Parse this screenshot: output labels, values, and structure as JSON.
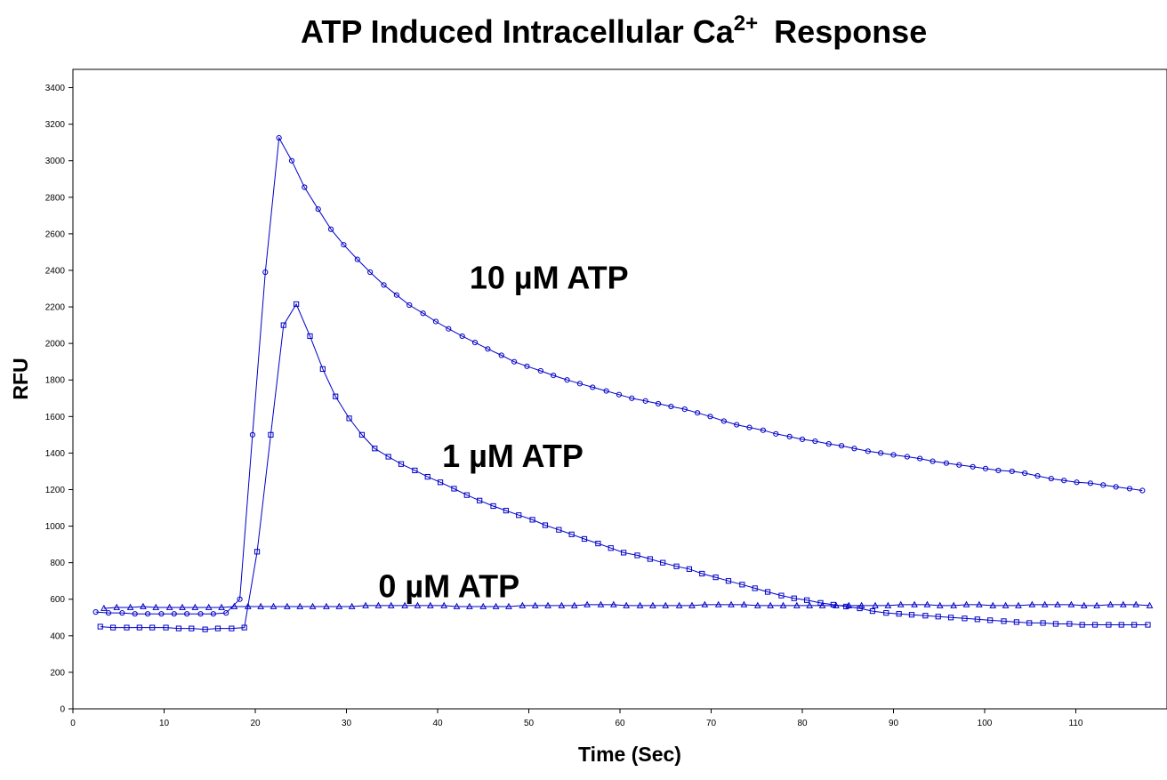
{
  "chart_data": {
    "type": "line",
    "title": "ATP Induced Intracellular Ca",
    "title_superscript": "2+",
    "title_suffix": "Response",
    "xlabel": "Time (Sec)",
    "ylabel": "RFU",
    "xlim": [
      0,
      120
    ],
    "ylim": [
      0,
      3500
    ],
    "xticks": [
      0,
      10,
      20,
      30,
      40,
      50,
      60,
      70,
      80,
      90,
      100,
      110
    ],
    "yticks": [
      0,
      200,
      400,
      600,
      800,
      1000,
      1200,
      1400,
      1600,
      1800,
      2000,
      2200,
      2400,
      2600,
      2800,
      3000,
      3200,
      3400
    ],
    "grid": false,
    "line_color": "#0000c8",
    "annotations": [
      {
        "text": "10 µM ATP",
        "x": 43.5,
        "y": 2300
      },
      {
        "text": "1 µM ATP",
        "x": 40.5,
        "y": 1325
      },
      {
        "text": "0 µM ATP",
        "x": 33.5,
        "y": 610
      }
    ],
    "series": [
      {
        "marker": "circle",
        "x": [
          2.5,
          3.9,
          5.4,
          6.8,
          8.2,
          9.7,
          11.1,
          12.5,
          14.0,
          15.4,
          16.8,
          18.3,
          19.7,
          21.1,
          22.6,
          24.0,
          25.4,
          26.9,
          28.3,
          29.7,
          31.2,
          32.6,
          34.1,
          35.5,
          36.9,
          38.4,
          39.8,
          41.2,
          42.7,
          44.1,
          45.5,
          47.0,
          48.4,
          49.8,
          51.3,
          52.7,
          54.2,
          55.6,
          57.0,
          58.5,
          59.9,
          61.3,
          62.8,
          64.2,
          65.6,
          67.1,
          68.5,
          69.9,
          71.4,
          72.8,
          74.2,
          75.7,
          77.1,
          78.6,
          80.0,
          81.4,
          82.9,
          84.3,
          85.7,
          87.2,
          88.6,
          90.0,
          91.5,
          92.9,
          94.3,
          95.8,
          97.2,
          98.7,
          100.1,
          101.5,
          103.0,
          104.4,
          105.8,
          107.3,
          108.7,
          110.1,
          111.6,
          113.0,
          114.4,
          115.9,
          117.3
        ],
        "values": [
          530,
          525,
          525,
          520,
          520,
          520,
          520,
          520,
          520,
          520,
          525,
          600,
          1500,
          2390,
          3125,
          3000,
          2855,
          2735,
          2625,
          2540,
          2460,
          2390,
          2320,
          2265,
          2210,
          2165,
          2120,
          2080,
          2040,
          2005,
          1970,
          1935,
          1900,
          1875,
          1850,
          1825,
          1800,
          1780,
          1760,
          1740,
          1720,
          1700,
          1685,
          1670,
          1655,
          1640,
          1620,
          1600,
          1575,
          1555,
          1540,
          1525,
          1505,
          1490,
          1475,
          1465,
          1450,
          1440,
          1425,
          1410,
          1400,
          1390,
          1380,
          1370,
          1355,
          1345,
          1335,
          1325,
          1315,
          1305,
          1300,
          1290,
          1275,
          1260,
          1250,
          1240,
          1235,
          1225,
          1215,
          1205,
          1195
        ]
      },
      {
        "marker": "square",
        "x": [
          3.0,
          4.4,
          5.9,
          7.3,
          8.7,
          10.2,
          11.6,
          13.0,
          14.5,
          15.9,
          17.4,
          18.8,
          20.2,
          21.7,
          23.1,
          24.5,
          26.0,
          27.4,
          28.8,
          30.3,
          31.7,
          33.1,
          34.6,
          36.0,
          37.5,
          38.9,
          40.3,
          41.8,
          43.2,
          44.6,
          46.1,
          47.5,
          48.9,
          50.4,
          51.8,
          53.3,
          54.7,
          56.1,
          57.6,
          59.0,
          60.4,
          61.9,
          63.3,
          64.7,
          66.2,
          67.6,
          69.0,
          70.5,
          71.9,
          73.4,
          74.8,
          76.2,
          77.7,
          79.1,
          80.5,
          82.0,
          83.4,
          84.8,
          86.3,
          87.7,
          89.2,
          90.6,
          92.0,
          93.5,
          94.9,
          96.3,
          97.8,
          99.2,
          100.6,
          102.1,
          103.5,
          104.9,
          106.4,
          107.8,
          109.3,
          110.7,
          112.1,
          113.6,
          115.0,
          116.4,
          117.9
        ],
        "values": [
          450,
          445,
          445,
          445,
          445,
          445,
          440,
          440,
          435,
          440,
          440,
          445,
          860,
          1500,
          2100,
          2215,
          2040,
          1860,
          1710,
          1590,
          1500,
          1425,
          1380,
          1340,
          1305,
          1270,
          1240,
          1205,
          1170,
          1140,
          1110,
          1085,
          1060,
          1035,
          1005,
          980,
          955,
          930,
          905,
          880,
          855,
          840,
          820,
          800,
          780,
          765,
          740,
          720,
          700,
          680,
          660,
          640,
          620,
          605,
          595,
          580,
          570,
          560,
          550,
          535,
          525,
          520,
          515,
          510,
          505,
          500,
          495,
          490,
          485,
          480,
          475,
          470,
          470,
          465,
          465,
          460,
          460,
          460,
          460,
          460,
          460
        ]
      },
      {
        "marker": "triangle",
        "x": [
          3.4,
          4.8,
          6.3,
          7.7,
          9.1,
          10.6,
          12.0,
          13.4,
          14.9,
          16.3,
          17.7,
          19.2,
          20.6,
          22.0,
          23.5,
          24.9,
          26.3,
          27.8,
          29.2,
          30.6,
          32.1,
          33.5,
          34.9,
          36.4,
          37.8,
          39.2,
          40.7,
          42.1,
          43.5,
          45.0,
          46.4,
          47.8,
          49.3,
          50.7,
          52.1,
          53.6,
          55.0,
          56.4,
          57.9,
          59.3,
          60.7,
          62.2,
          63.6,
          65.0,
          66.5,
          67.9,
          69.3,
          70.8,
          72.2,
          73.6,
          75.1,
          76.5,
          77.9,
          79.4,
          80.8,
          82.2,
          83.7,
          85.1,
          86.5,
          88.0,
          89.4,
          90.8,
          92.3,
          93.7,
          95.1,
          96.6,
          98.0,
          99.4,
          100.9,
          102.3,
          103.7,
          105.2,
          106.6,
          108.0,
          109.5,
          110.9,
          112.3,
          113.8,
          115.2,
          116.6,
          118.1
        ],
        "values": [
          550,
          555,
          555,
          560,
          555,
          555,
          555,
          555,
          555,
          555,
          560,
          560,
          560,
          560,
          560,
          560,
          560,
          560,
          560,
          560,
          565,
          565,
          565,
          565,
          565,
          565,
          565,
          560,
          560,
          560,
          560,
          560,
          565,
          565,
          565,
          565,
          565,
          570,
          570,
          570,
          565,
          565,
          565,
          565,
          565,
          565,
          570,
          570,
          570,
          570,
          565,
          565,
          565,
          565,
          565,
          565,
          565,
          565,
          565,
          565,
          565,
          570,
          570,
          570,
          565,
          565,
          570,
          570,
          565,
          565,
          565,
          570,
          570,
          570,
          570,
          565,
          565,
          570,
          570,
          570,
          565
        ]
      }
    ]
  }
}
